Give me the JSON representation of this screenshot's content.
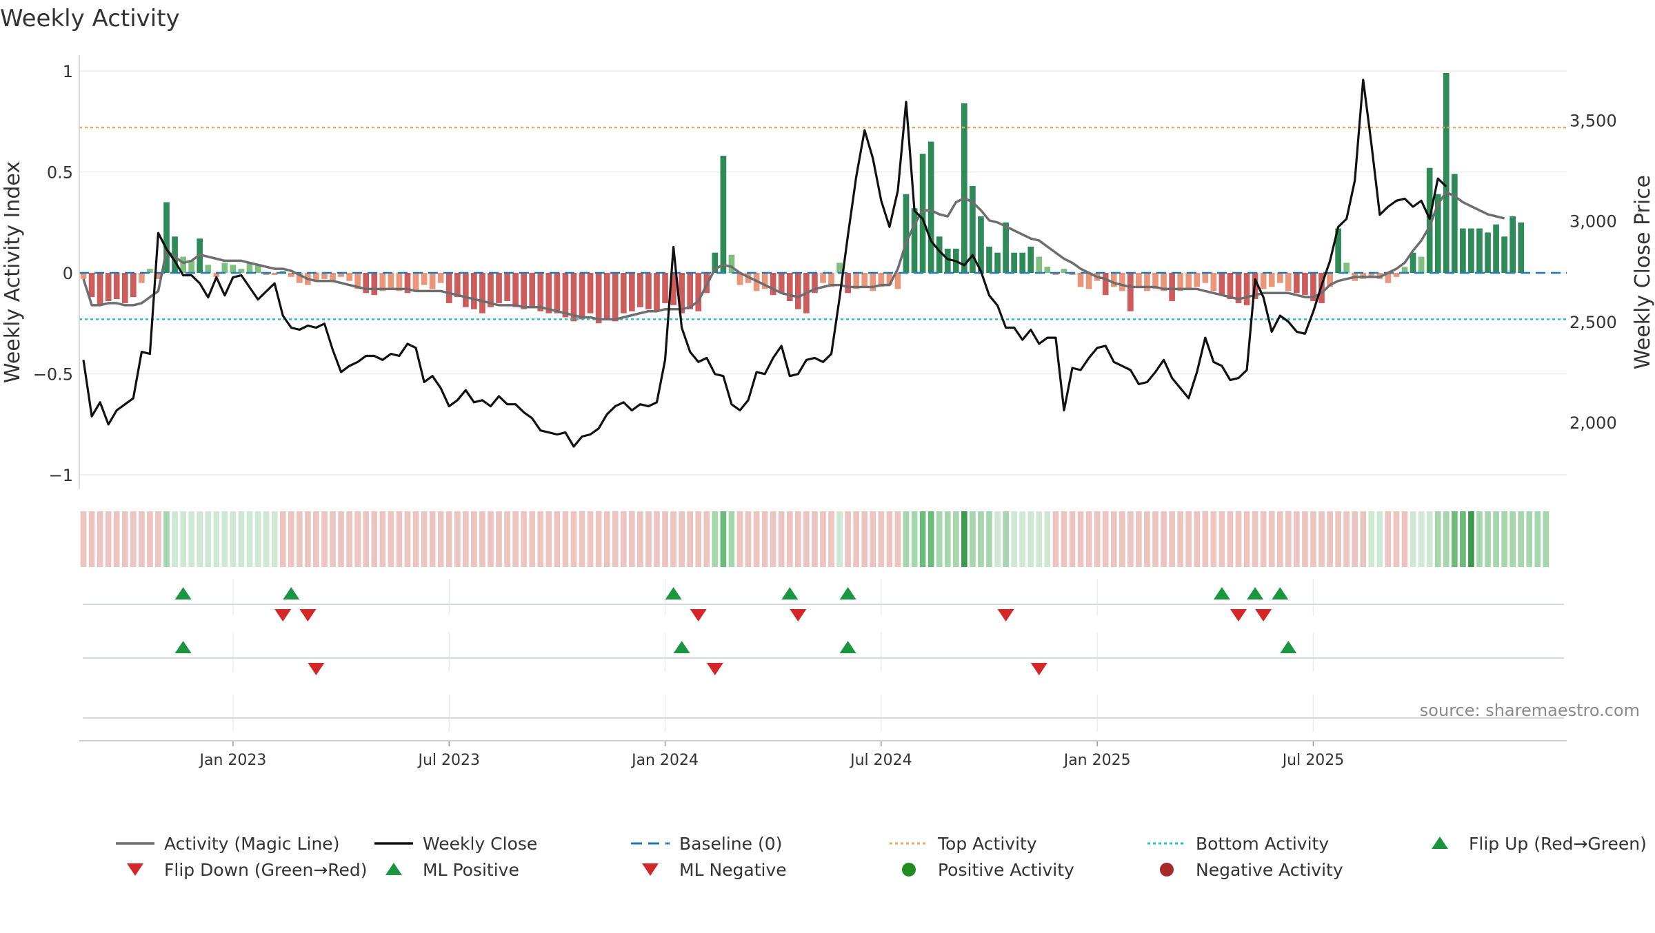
{
  "chart_data": {
    "type": "bar+line",
    "title": "Weekly Activity",
    "ylabel_left": "Weekly Activity Index",
    "ylabel_right": "Weekly Close Price",
    "xlabel": "",
    "ylim_left": [
      -1.1,
      1.05
    ],
    "yticks_left": [
      1,
      0.5,
      0,
      -0.5,
      -1
    ],
    "ytick_labels_left": [
      "1",
      "0.5",
      "0",
      "−0.5",
      "−1"
    ],
    "ylim_right": [
      1650,
      3820
    ],
    "yticks_right": [
      3500,
      3000,
      2500,
      2000
    ],
    "ytick_labels_right": [
      "3,500",
      "3,000",
      "2,500",
      "2,000"
    ],
    "xlim_weeks": [
      -18.5,
      160.5
    ],
    "xtick_weeks": [
      0,
      26,
      52,
      78,
      104,
      130
    ],
    "xtick_labels": [
      "Jan 2023",
      "Jul 2023",
      "Jan 2024",
      "Jul 2024",
      "Jan 2025",
      "Jul 2025"
    ],
    "top_activity": 0.72,
    "bottom_activity": -0.23,
    "baseline": 0,
    "colors": {
      "pos_strong": "#2e8b57",
      "pos_light": "#7fbf7f",
      "neg_strong": "#cd5c5c",
      "neg_light": "#e9967a",
      "magic_line": "#6e6e6e",
      "close_line": "#111111",
      "baseline": "#1f77b4",
      "top_line": "#f4a460",
      "bottom_line": "#20c0c0",
      "flip_up": "#1a9641",
      "flip_down": "#d62728",
      "pos_dot": "#228b22",
      "neg_dot": "#a52a2a"
    },
    "activity_index": [
      -0.03,
      -0.12,
      -0.16,
      -0.14,
      -0.13,
      -0.15,
      -0.12,
      -0.05,
      0.02,
      -0.03,
      0.35,
      0.18,
      0.08,
      0.06,
      0.17,
      0.04,
      -0.02,
      0.05,
      0.04,
      0.02,
      0.05,
      0.04,
      -0.01,
      -0.01,
      0.01,
      -0.02,
      -0.05,
      -0.06,
      -0.04,
      -0.03,
      -0.04,
      -0.02,
      -0.04,
      -0.08,
      -0.1,
      -0.11,
      -0.09,
      -0.08,
      -0.09,
      -0.1,
      -0.09,
      -0.06,
      -0.08,
      -0.05,
      -0.15,
      -0.12,
      -0.17,
      -0.18,
      -0.2,
      -0.17,
      -0.15,
      -0.14,
      -0.17,
      -0.18,
      -0.17,
      -0.19,
      -0.2,
      -0.2,
      -0.22,
      -0.24,
      -0.23,
      -0.2,
      -0.25,
      -0.23,
      -0.24,
      -0.2,
      -0.19,
      -0.17,
      -0.18,
      -0.19,
      -0.15,
      -0.16,
      -0.2,
      -0.18,
      -0.19,
      -0.1,
      0.1,
      0.58,
      0.09,
      -0.06,
      -0.05,
      -0.09,
      -0.08,
      -0.11,
      -0.1,
      -0.14,
      -0.18,
      -0.2,
      -0.1,
      -0.05,
      -0.07,
      0.05,
      -0.1,
      -0.08,
      -0.07,
      -0.09,
      -0.07,
      -0.06,
      -0.08,
      0.39,
      0.32,
      0.59,
      0.65,
      0.18,
      0.12,
      0.12,
      0.84,
      0.43,
      0.28,
      0.13,
      0.1,
      0.25,
      0.1,
      0.1,
      0.13,
      0.08,
      0.03,
      -0.01,
      0.02,
      -0.01,
      -0.07,
      -0.08,
      -0.04,
      -0.11,
      -0.07,
      -0.09,
      -0.19,
      -0.07,
      -0.09,
      -0.08,
      -0.09,
      -0.14,
      -0.09,
      -0.08,
      -0.07,
      -0.05,
      -0.09,
      -0.11,
      -0.13,
      -0.15,
      -0.16,
      -0.13,
      -0.08,
      -0.07,
      -0.05,
      -0.09,
      -0.1,
      -0.11,
      -0.14,
      -0.15,
      -0.07,
      0.22,
      0.05,
      -0.04,
      -0.03,
      -0.02,
      -0.03,
      -0.05,
      -0.02,
      0.03,
      0.1,
      0.08,
      0.52,
      0.39,
      0.99,
      0.49,
      0.22,
      0.22,
      0.22,
      0.2,
      0.24,
      0.18,
      0.28,
      0.25
    ],
    "activity_magic_line": [
      -0.03,
      -0.16,
      -0.16,
      -0.15,
      -0.15,
      -0.16,
      -0.16,
      -0.15,
      -0.12,
      -0.09,
      0.11,
      0.08,
      0.05,
      0.06,
      0.09,
      0.08,
      0.07,
      0.06,
      0.06,
      0.06,
      0.05,
      0.04,
      0.03,
      0.02,
      0.02,
      0.01,
      -0.01,
      -0.03,
      -0.04,
      -0.04,
      -0.04,
      -0.05,
      -0.06,
      -0.07,
      -0.08,
      -0.08,
      -0.08,
      -0.08,
      -0.08,
      -0.08,
      -0.09,
      -0.09,
      -0.09,
      -0.09,
      -0.1,
      -0.11,
      -0.12,
      -0.13,
      -0.14,
      -0.15,
      -0.16,
      -0.16,
      -0.16,
      -0.17,
      -0.17,
      -0.17,
      -0.18,
      -0.19,
      -0.2,
      -0.21,
      -0.22,
      -0.22,
      -0.23,
      -0.23,
      -0.23,
      -0.22,
      -0.21,
      -0.2,
      -0.19,
      -0.19,
      -0.18,
      -0.18,
      -0.18,
      -0.17,
      -0.14,
      -0.06,
      0.02,
      0.04,
      0.03,
      0.0,
      -0.02,
      -0.04,
      -0.06,
      -0.08,
      -0.1,
      -0.11,
      -0.12,
      -0.1,
      -0.08,
      -0.07,
      -0.06,
      -0.06,
      -0.07,
      -0.07,
      -0.07,
      -0.07,
      -0.06,
      -0.06,
      0.02,
      0.15,
      0.24,
      0.31,
      0.31,
      0.29,
      0.28,
      0.35,
      0.37,
      0.35,
      0.31,
      0.26,
      0.25,
      0.23,
      0.21,
      0.19,
      0.17,
      0.16,
      0.13,
      0.1,
      0.07,
      0.05,
      0.02,
      0.0,
      -0.02,
      -0.03,
      -0.05,
      -0.06,
      -0.07,
      -0.07,
      -0.07,
      -0.07,
      -0.08,
      -0.08,
      -0.08,
      -0.08,
      -0.08,
      -0.09,
      -0.1,
      -0.11,
      -0.12,
      -0.13,
      -0.12,
      -0.11,
      -0.1,
      -0.1,
      -0.1,
      -0.1,
      -0.11,
      -0.12,
      -0.12,
      -0.1,
      -0.06,
      -0.04,
      -0.03,
      -0.02,
      -0.02,
      -0.02,
      -0.02,
      0.0,
      0.02,
      0.05,
      0.11,
      0.16,
      0.23,
      0.34,
      0.4,
      0.38,
      0.35,
      0.33,
      0.31,
      0.29,
      0.28,
      0.27
    ],
    "weekly_close": [
      2310,
      2030,
      2100,
      1990,
      2060,
      2090,
      2120,
      2350,
      2340,
      2940,
      2860,
      2800,
      2730,
      2730,
      2690,
      2620,
      2720,
      2630,
      2720,
      2730,
      2670,
      2610,
      2650,
      2690,
      2530,
      2470,
      2460,
      2480,
      2470,
      2490,
      2360,
      2250,
      2280,
      2300,
      2330,
      2330,
      2310,
      2340,
      2330,
      2390,
      2370,
      2200,
      2230,
      2170,
      2080,
      2110,
      2160,
      2100,
      2110,
      2080,
      2130,
      2090,
      2090,
      2050,
      2020,
      1960,
      1950,
      1940,
      1950,
      1880,
      1930,
      1940,
      1970,
      2040,
      2080,
      2100,
      2060,
      2090,
      2080,
      2100,
      2310,
      2870,
      2470,
      2350,
      2300,
      2320,
      2240,
      2230,
      2090,
      2060,
      2110,
      2250,
      2240,
      2320,
      2380,
      2230,
      2240,
      2310,
      2320,
      2300,
      2340,
      2620,
      2930,
      3220,
      3450,
      3310,
      3100,
      2970,
      3150,
      3590,
      3050,
      3010,
      2900,
      2850,
      2810,
      2800,
      2780,
      2830,
      2750,
      2630,
      2580,
      2470,
      2470,
      2410,
      2460,
      2390,
      2420,
      2420,
      2060,
      2270,
      2260,
      2320,
      2370,
      2380,
      2300,
      2280,
      2260,
      2190,
      2200,
      2250,
      2310,
      2220,
      2170,
      2120,
      2250,
      2420,
      2300,
      2280,
      2210,
      2220,
      2260,
      2710,
      2620,
      2450,
      2530,
      2500,
      2450,
      2440,
      2550,
      2680,
      2800,
      2970,
      3010,
      3200,
      3700,
      3380,
      3030,
      3070,
      3100,
      3110,
      3070,
      3100,
      3010,
      3210,
      3170
    ],
    "heat_strip_levels": [
      -1,
      -1,
      -1,
      -1,
      -1,
      -1,
      -1,
      -1,
      -1,
      -1,
      2,
      1,
      1,
      1,
      1,
      1,
      1,
      1,
      1,
      1,
      1,
      1,
      1,
      1,
      -1,
      -1,
      -1,
      -1,
      -1,
      -1,
      -1,
      -1,
      -1,
      -1,
      -1,
      -1,
      -1,
      -1,
      -1,
      -1,
      -1,
      -1,
      -1,
      -1,
      -1,
      -1,
      -1,
      -1,
      -1,
      -1,
      -1,
      -1,
      -1,
      -1,
      -1,
      -1,
      -1,
      -1,
      -1,
      -1,
      -1,
      -1,
      -1,
      -1,
      -1,
      -1,
      -1,
      -1,
      -1,
      -1,
      -1,
      -1,
      -1,
      -1,
      -1,
      -1,
      2,
      3,
      2,
      -1,
      -1,
      -1,
      -1,
      -1,
      -1,
      -1,
      -1,
      -1,
      -1,
      -1,
      -1,
      1,
      -1,
      -1,
      -1,
      -1,
      -1,
      -1,
      -1,
      2,
      2,
      3,
      3,
      2,
      2,
      2,
      4,
      2,
      2,
      2,
      1,
      2,
      1,
      1,
      1,
      1,
      1,
      -1,
      -1,
      -1,
      -1,
      -1,
      -1,
      -1,
      -1,
      -1,
      -1,
      -1,
      -1,
      -1,
      -1,
      -1,
      -1,
      -1,
      -1,
      -1,
      -1,
      -1,
      -1,
      -1,
      -1,
      -1,
      -1,
      -1,
      -1,
      -1,
      -1,
      -1,
      -1,
      -1,
      -1,
      -1,
      -1,
      -1,
      -1,
      1,
      1,
      -1,
      -1,
      -1,
      1,
      1,
      1,
      2,
      2,
      3,
      3,
      4,
      2,
      2,
      2,
      2,
      2,
      2,
      2,
      2,
      2
    ],
    "flip_up_weeks": [
      -6,
      7,
      53,
      67,
      74,
      119,
      123,
      126
    ],
    "flip_down_weeks": [
      6,
      9,
      56,
      68,
      93,
      121,
      124
    ],
    "ml_positive_weeks": [
      -6,
      54,
      74,
      127
    ],
    "ml_negative_weeks": [
      10,
      58,
      97
    ],
    "legend": [
      {
        "label": "Activity (Magic Line)",
        "kind": "line",
        "color": "#6e6e6e"
      },
      {
        "label": "Weekly Close",
        "kind": "line",
        "color": "#111111"
      },
      {
        "label": "Baseline (0)",
        "kind": "dash",
        "color": "#1f77b4"
      },
      {
        "label": "Top Activity",
        "kind": "dot-line",
        "color": "#f4a460"
      },
      {
        "label": "Bottom Activity",
        "kind": "dot-line",
        "color": "#20c0c0"
      },
      {
        "label": "Flip Up (Red→Green)",
        "kind": "tri-up",
        "color": "#1a9641"
      },
      {
        "label": "Flip Down (Green→Red)",
        "kind": "tri-down",
        "color": "#d62728"
      },
      {
        "label": "ML Positive",
        "kind": "tri-up",
        "color": "#1a9641"
      },
      {
        "label": "ML Negative",
        "kind": "tri-down",
        "color": "#d62728"
      },
      {
        "label": "Positive Activity",
        "kind": "circle",
        "color": "#228b22"
      },
      {
        "label": "Negative Activity",
        "kind": "circle",
        "color": "#a52a2a"
      }
    ],
    "source": "source: sharemaestro.com"
  }
}
